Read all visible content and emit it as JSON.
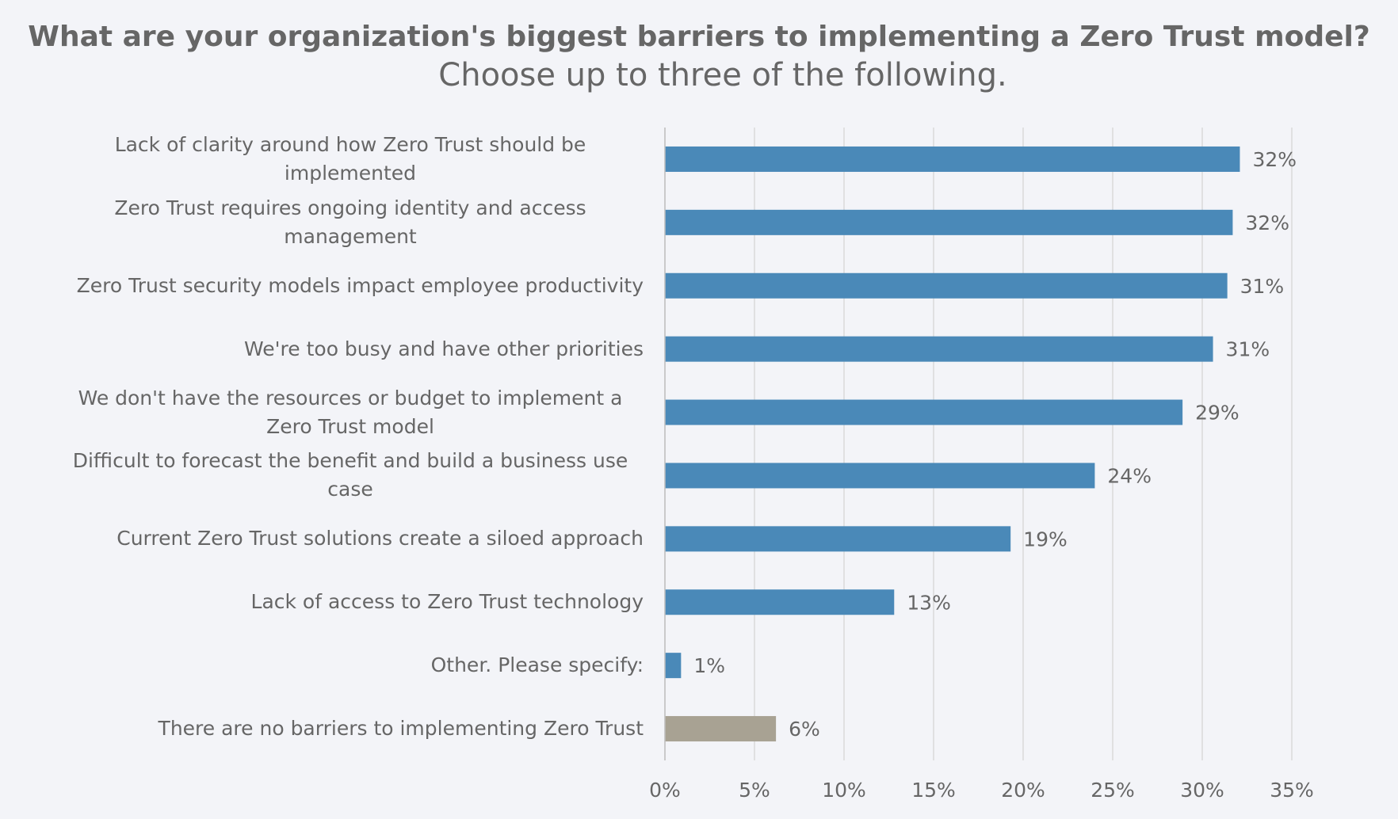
{
  "chart_data": {
    "type": "barh",
    "title": "What are your organization's biggest barriers to implementing a Zero Trust model?",
    "subtitle": "Choose up to three of the following.",
    "categories": [
      "Lack of clarity around how Zero Trust should be implemented",
      "Zero Trust requires ongoing identity and access management",
      "Zero Trust security models impact employee productivity",
      "We're too busy and have other priorities",
      "We don't have the resources or budget to implement a Zero Trust model",
      "Difficult to forecast the benefit and build a business use case",
      "Current Zero Trust solutions create a siloed approach",
      "Lack of access to Zero Trust technology",
      "Other. Please specify:",
      "There are no barriers to implementing Zero Trust"
    ],
    "values": [
      32.1,
      31.7,
      31.4,
      30.6,
      28.9,
      24.0,
      19.3,
      12.8,
      0.9,
      6.2
    ],
    "value_labels": [
      "32%",
      "32%",
      "31%",
      "31%",
      "29%",
      "24%",
      "19%",
      "13%",
      "1%",
      "6%"
    ],
    "colors": [
      "#4a89b8",
      "#4a89b8",
      "#4a89b8",
      "#4a89b8",
      "#4a89b8",
      "#4a89b8",
      "#4a89b8",
      "#4a89b8",
      "#4a89b8",
      "#a8a293"
    ],
    "xlim": [
      0,
      35
    ],
    "xticks": [
      {
        "value": 0,
        "label": "0%"
      },
      {
        "value": 5,
        "label": "5%"
      },
      {
        "value": 10,
        "label": "10%"
      },
      {
        "value": 15,
        "label": "15%"
      },
      {
        "value": 20,
        "label": "20%"
      },
      {
        "value": 25,
        "label": "25%"
      },
      {
        "value": 30,
        "label": "30%"
      },
      {
        "value": 35,
        "label": "35%"
      }
    ],
    "grid": true
  }
}
